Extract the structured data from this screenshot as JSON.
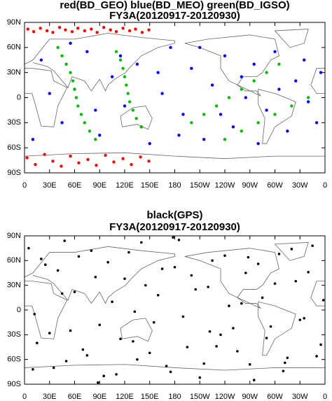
{
  "chart_data": [
    {
      "type": "scatter",
      "title": "red(BD_GEO) blue(BD_MEO) green(BD_IGSO)",
      "subtitle": "FY3A(20120917-20120930)",
      "xlim": [
        0,
        360
      ],
      "ylim": [
        -90,
        90
      ],
      "xticks": [
        0,
        {
          "value": 30,
          "label": "30E"
        },
        {
          "value": 60,
          "label": "60E"
        },
        {
          "value": 90,
          "label": "90E"
        },
        {
          "value": 120,
          "label": "120E"
        },
        {
          "value": 150,
          "label": "150E"
        },
        180,
        {
          "value": 210,
          "label": "150W"
        },
        {
          "value": 240,
          "label": "120W"
        },
        {
          "value": 270,
          "label": "90W"
        },
        {
          "value": 300,
          "label": "60W"
        },
        {
          "value": 330,
          "label": "30W"
        },
        {
          "value": 360,
          "label": "0"
        }
      ],
      "yticks": [
        {
          "value": -90,
          "label": "90S"
        },
        {
          "value": -60,
          "label": "60S"
        },
        {
          "value": -30,
          "label": "30S"
        },
        0,
        {
          "value": 30,
          "label": "30N"
        },
        {
          "value": 60,
          "label": "60N"
        },
        {
          "value": 90,
          "label": "90N"
        }
      ],
      "series": [
        {
          "color": "#ff0000",
          "x": [
            4,
            11,
            19,
            27,
            34,
            42,
            49,
            57,
            64,
            72,
            80,
            87,
            95,
            103,
            110,
            118,
            126,
            133,
            141,
            149,
            3,
            13,
            24,
            34,
            44,
            55,
            65,
            76,
            86,
            97,
            107,
            118,
            128,
            139,
            149
          ],
          "y": [
            82,
            79,
            83,
            80,
            78,
            84,
            81,
            79,
            83,
            80,
            82,
            78,
            84,
            81,
            79,
            83,
            80,
            82,
            78,
            81,
            -72,
            -80,
            -68,
            -76,
            -82,
            -70,
            -78,
            -74,
            -81,
            -69,
            -77,
            -73,
            -80,
            -71,
            -76
          ]
        },
        {
          "color": "#0000ff",
          "x": [
            20,
            45,
            60,
            75,
            90,
            105,
            120,
            135,
            150,
            165,
            175,
            190,
            200,
            215,
            225,
            240,
            250,
            265,
            275,
            290,
            300,
            315,
            325,
            340,
            355,
            10,
            30,
            55,
            85,
            115,
            140,
            160,
            185,
            210,
            235,
            260,
            280,
            305,
            335,
            350
          ],
          "y": [
            45,
            -30,
            10,
            55,
            -45,
            25,
            -10,
            40,
            -55,
            5,
            60,
            -20,
            35,
            -50,
            15,
            50,
            -35,
            0,
            40,
            -15,
            55,
            -40,
            20,
            -5,
            30,
            -50,
            5,
            65,
            -15,
            50,
            -35,
            30,
            -45,
            60,
            -20,
            25,
            -55,
            10,
            45,
            -30
          ]
        },
        {
          "color": "#00bb00",
          "x": [
            40,
            45,
            50,
            55,
            58,
            60,
            62,
            64,
            68,
            72,
            78,
            85,
            110,
            115,
            118,
            120,
            122,
            124,
            126,
            130,
            134,
            140,
            200,
            215,
            230,
            245,
            260,
            275,
            290,
            305,
            240,
            260,
            280,
            300,
            320,
            340
          ],
          "y": [
            60,
            50,
            40,
            30,
            20,
            10,
            0,
            -10,
            -20,
            -30,
            -40,
            -50,
            55,
            45,
            35,
            25,
            15,
            5,
            -5,
            -15,
            -25,
            -35,
            -30,
            -20,
            -10,
            0,
            10,
            20,
            30,
            40,
            -50,
            -40,
            -30,
            -20,
            -10,
            0
          ]
        }
      ]
    },
    {
      "type": "scatter",
      "title": "black(GPS)",
      "subtitle": "FY3A(20120917-20120930)",
      "xlim": [
        0,
        360
      ],
      "ylim": [
        -90,
        90
      ],
      "xticks": [
        0,
        {
          "value": 30,
          "label": "30E"
        },
        {
          "value": 60,
          "label": "60E"
        },
        {
          "value": 90,
          "label": "90E"
        },
        {
          "value": 120,
          "label": "120E"
        },
        {
          "value": 150,
          "label": "150E"
        },
        180,
        {
          "value": 210,
          "label": "150W"
        },
        {
          "value": 240,
          "label": "120W"
        },
        {
          "value": 270,
          "label": "90W"
        },
        {
          "value": 300,
          "label": "60W"
        },
        {
          "value": 330,
          "label": "30W"
        },
        {
          "value": 360,
          "label": "0"
        }
      ],
      "yticks": [
        {
          "value": -90,
          "label": "90S"
        },
        {
          "value": -60,
          "label": "60S"
        },
        {
          "value": -30,
          "label": "30S"
        },
        0,
        {
          "value": 30,
          "label": "30N"
        },
        {
          "value": 60,
          "label": "60N"
        },
        {
          "value": 90,
          "label": "90N"
        }
      ],
      "series": [
        {
          "color": "#000000",
          "x": [
            5,
            15,
            25,
            35,
            45,
            55,
            65,
            75,
            85,
            95,
            105,
            115,
            125,
            135,
            145,
            155,
            165,
            175,
            185,
            195,
            205,
            215,
            225,
            235,
            245,
            255,
            265,
            275,
            285,
            295,
            305,
            315,
            325,
            335,
            345,
            355,
            10,
            20,
            30,
            40,
            50,
            60,
            70,
            80,
            90,
            100,
            110,
            120,
            130,
            140,
            150,
            160,
            170,
            180,
            190,
            200,
            210,
            220,
            230,
            240,
            250,
            260,
            270,
            280,
            290,
            300,
            310,
            320,
            330,
            340,
            350,
            358,
            12,
            48,
            88,
            132,
            178,
            222,
            268,
            312
          ],
          "y": [
            75,
            -40,
            55,
            -70,
            20,
            -25,
            65,
            -55,
            40,
            -80,
            10,
            -35,
            70,
            -60,
            30,
            -15,
            50,
            -75,
            85,
            -45,
            25,
            -65,
            60,
            -30,
            5,
            -50,
            45,
            -85,
            15,
            -20,
            68,
            -58,
            35,
            -10,
            78,
            -42,
            -72,
            62,
            -28,
            48,
            -62,
            22,
            -48,
            72,
            -18,
            58,
            -78,
            38,
            -38,
            82,
            -52,
            18,
            -68,
            52,
            -8,
            42,
            -82,
            28,
            -44,
            66,
            -22,
            8,
            -66,
            56,
            -34,
            32,
            -74,
            74,
            -12,
            46,
            -56,
            12,
            -5,
            84,
            -88,
            -2,
            88,
            -26,
            64,
            -64
          ]
        }
      ]
    }
  ]
}
